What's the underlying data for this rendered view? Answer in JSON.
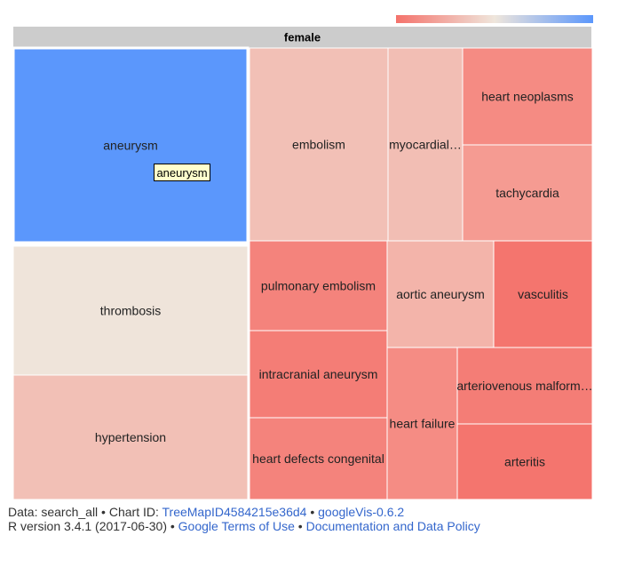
{
  "chart_data": {
    "type": "treemap",
    "root": "female",
    "color_scale": {
      "min_color": "#f4726b",
      "mid_color": "#efe6dc",
      "max_color": "#5b97fc"
    },
    "cells": [
      {
        "label": "aneurysm",
        "color": "#5b97fc",
        "highlighted": true
      },
      {
        "label": "thrombosis",
        "color": "#efe4da"
      },
      {
        "label": "hypertension",
        "color": "#f2c0b6"
      },
      {
        "label": "embolism",
        "color": "#f2c0b6"
      },
      {
        "label": "myocardial…",
        "color": "#f2beb4"
      },
      {
        "label": "heart neoplasms",
        "color": "#f58b83"
      },
      {
        "label": "tachycardia",
        "color": "#f59b92"
      },
      {
        "label": "pulmonary embolism",
        "color": "#f4837c"
      },
      {
        "label": "intracranial aneurysm",
        "color": "#f47d76"
      },
      {
        "label": "heart defects congenital",
        "color": "#f4837c"
      },
      {
        "label": "aortic aneurysm",
        "color": "#f3b4aa"
      },
      {
        "label": "vasculitis",
        "color": "#f4756e"
      },
      {
        "label": "heart failure",
        "color": "#f58c84"
      },
      {
        "label": "arteriovenous malform…",
        "color": "#f47d76"
      },
      {
        "label": "arteritis",
        "color": "#f4756e"
      }
    ],
    "tooltip": {
      "text": "aneurysm"
    }
  },
  "footer": {
    "data_prefix": "Data: search_all • Chart ID: ",
    "chart_id": "TreeMapID4584215e36d4",
    "sep1": " • ",
    "package": "googleVis-0.6.2",
    "r_version": "R version 3.4.1 (2017-06-30) • ",
    "terms": "Google Terms of Use",
    "sep2": " • ",
    "policy": "Documentation and Data Policy"
  }
}
